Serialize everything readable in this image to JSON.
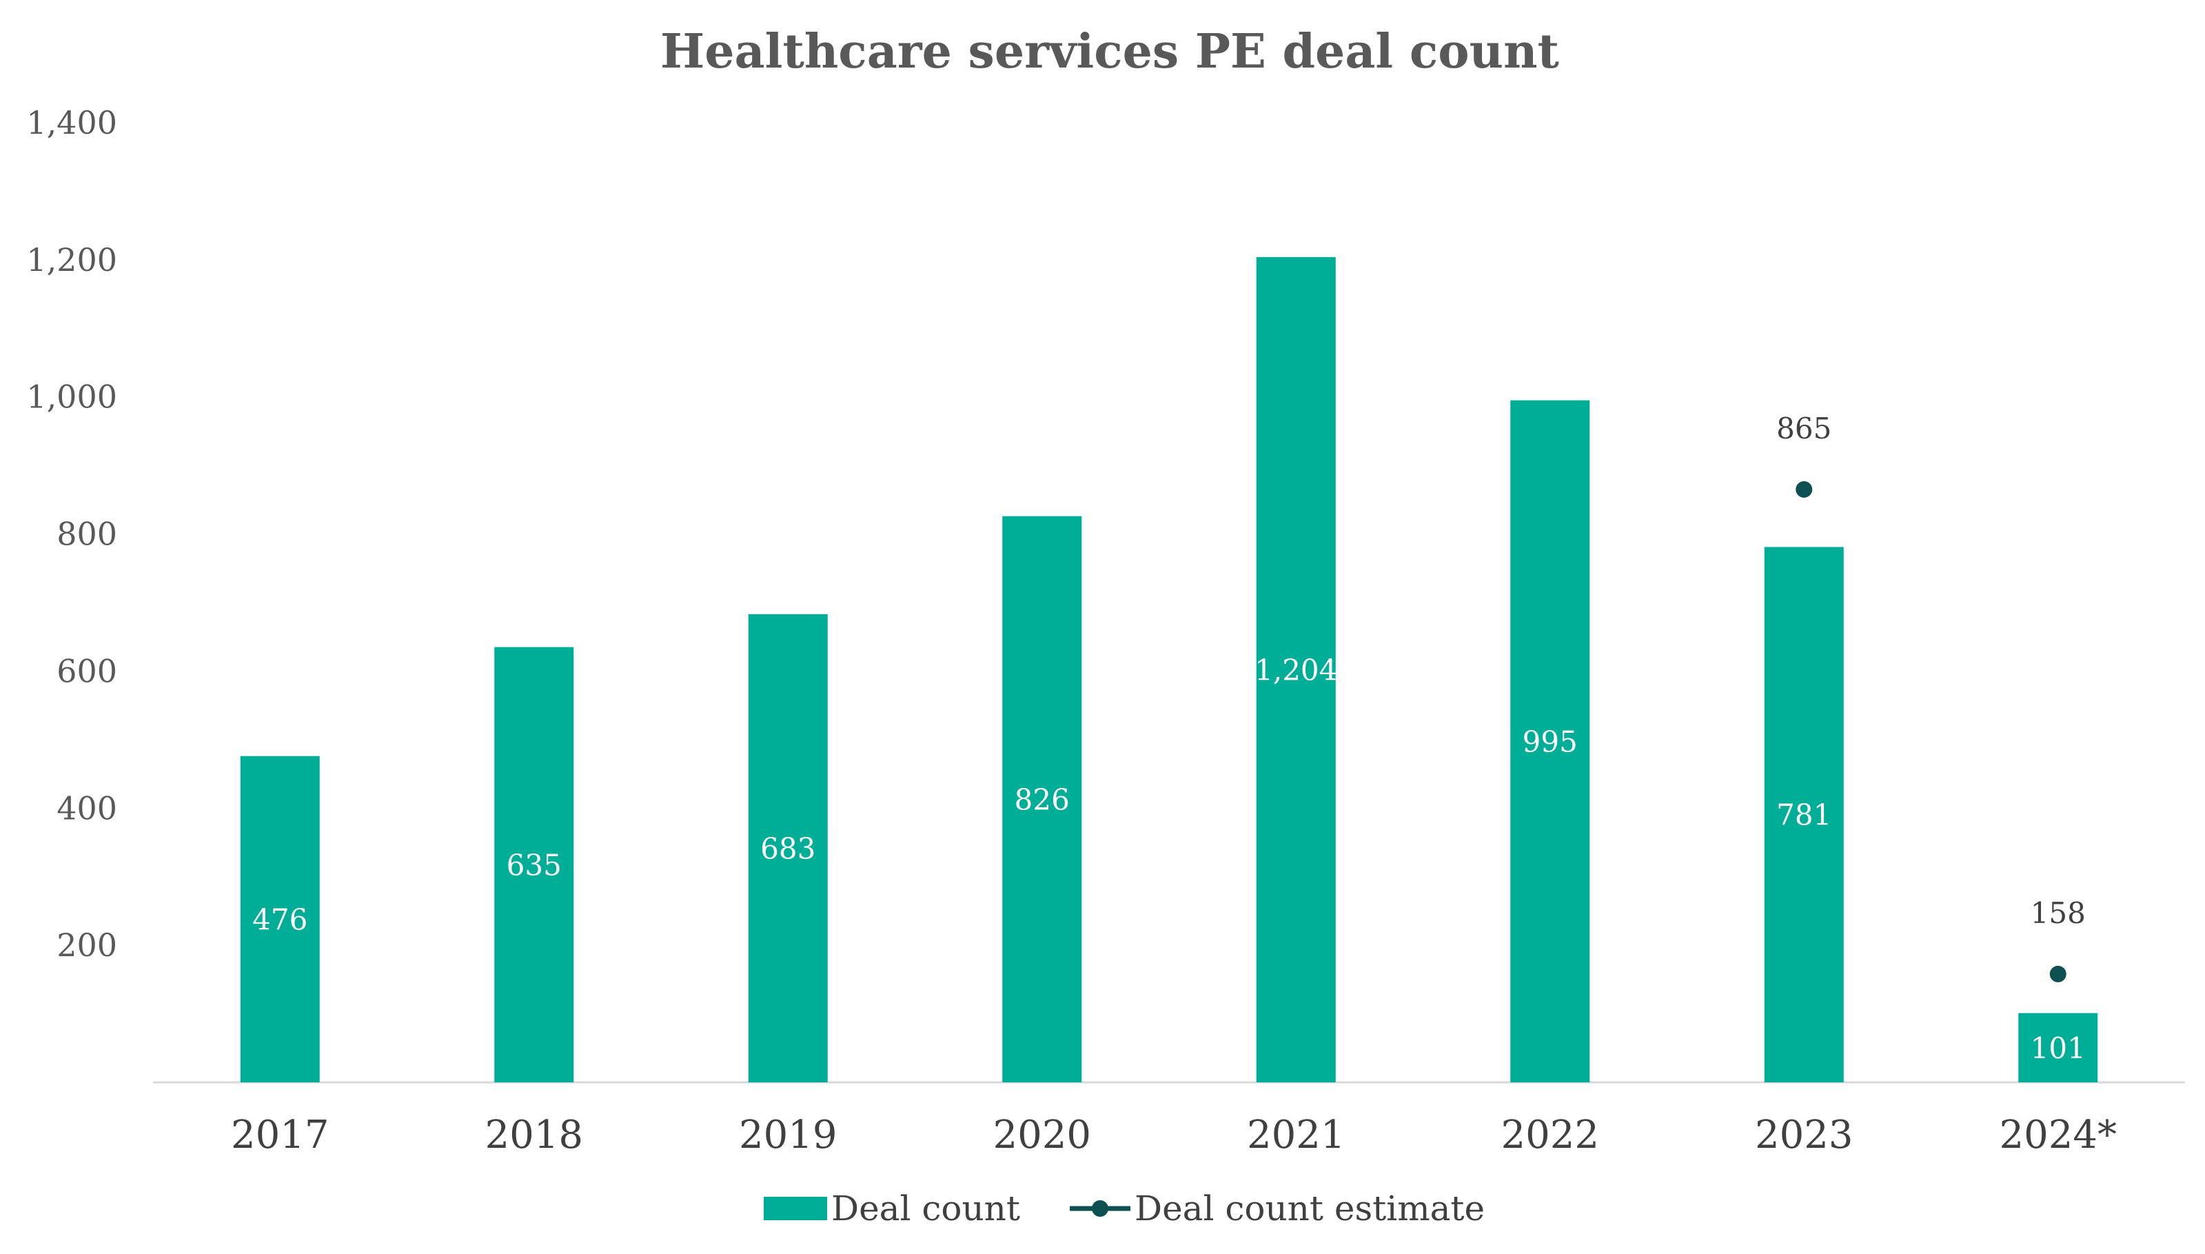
{
  "chart_data": {
    "type": "bar",
    "title": "Healthcare services PE deal count",
    "xlabel": "",
    "ylabel": "",
    "categories": [
      "2017",
      "2018",
      "2019",
      "2020",
      "2021",
      "2022",
      "2023",
      "2024*"
    ],
    "series": [
      {
        "name": "Deal count",
        "type": "bar",
        "color": "#00AE97",
        "values": [
          476,
          635,
          683,
          826,
          1204,
          995,
          781,
          101
        ],
        "value_labels": [
          "476",
          "635",
          "683",
          "826",
          "1,204",
          "995",
          "781",
          "101"
        ]
      },
      {
        "name": "Deal count estimate",
        "type": "point",
        "color": "#0E4F52",
        "values": [
          null,
          null,
          null,
          null,
          null,
          null,
          865,
          158
        ],
        "value_labels": [
          null,
          null,
          null,
          null,
          null,
          null,
          "865",
          "158"
        ]
      }
    ],
    "ylim": [
      0,
      1400
    ],
    "y_ticks": [
      200,
      400,
      600,
      800,
      1000,
      1200,
      1400
    ],
    "y_tick_labels": [
      "200",
      "400",
      "600",
      "800",
      "1,000",
      "1,200",
      "1,400"
    ],
    "grid": false,
    "legend_position": "bottom-center"
  }
}
